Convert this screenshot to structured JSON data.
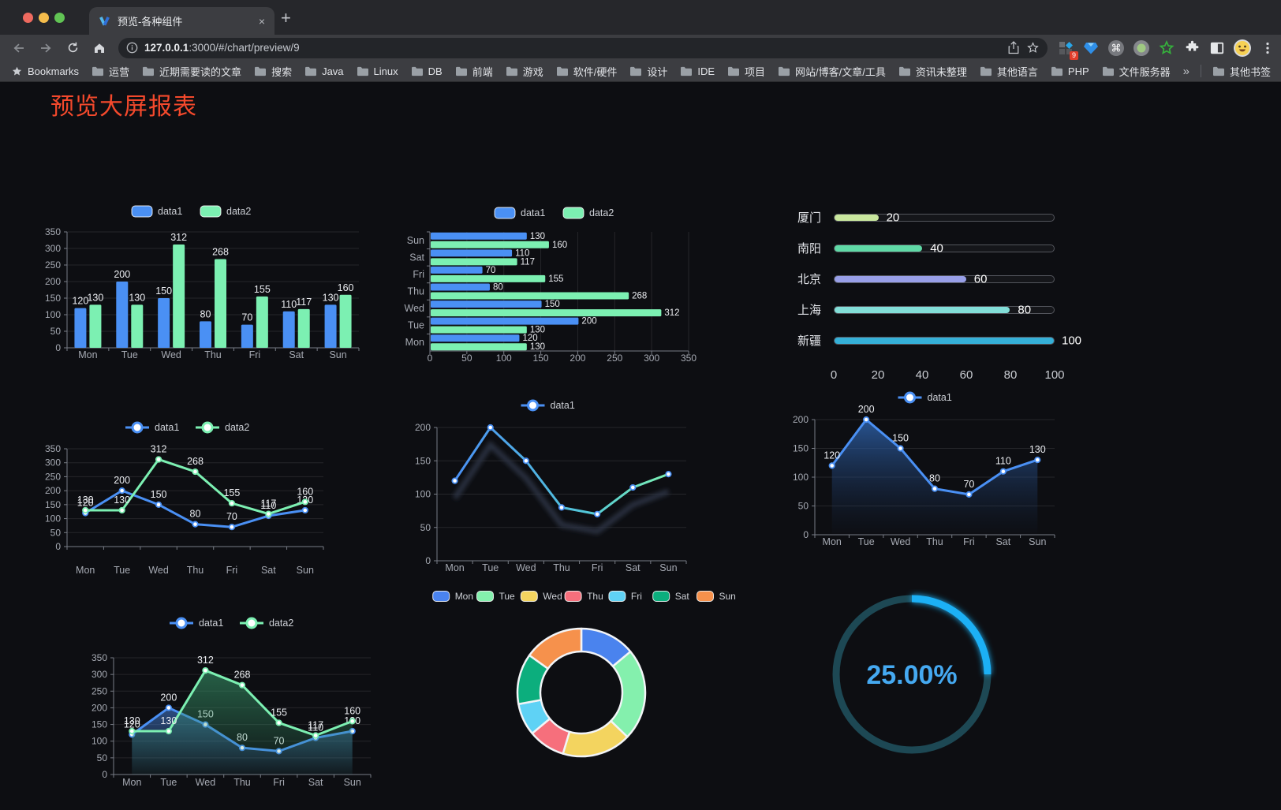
{
  "browser": {
    "tab_title": "预览-各种组件",
    "close_tab": "×",
    "new_tab": "+",
    "url_host": "127.0.0.1",
    "url_rest": ":3000/#/chart/preview/9",
    "bookmarks_label": "Bookmarks",
    "bookmarks": [
      "运营",
      "近期需要读的文章",
      "搜索",
      "Java",
      "Linux",
      "DB",
      "前端",
      "游戏",
      "软件/硬件",
      "设计",
      "IDE",
      "项目",
      "网站/博客/文章/工具",
      "资讯未整理",
      "其他语言",
      "PHP",
      "文件服务器"
    ],
    "overflow_chevron": "»",
    "other_bookmarks": "其他书签",
    "extension_badge": "9"
  },
  "page": {
    "title": "预览大屏报表",
    "title_color": "#f4492c",
    "background": "#0d0e12"
  },
  "chart_data": [
    {
      "id": "bar-vertical",
      "type": "bar",
      "categories": [
        "Mon",
        "Tue",
        "Wed",
        "Thu",
        "Fri",
        "Sat",
        "Sun"
      ],
      "series": [
        {
          "name": "data1",
          "color": "#4a90f4",
          "values": [
            120,
            200,
            150,
            80,
            70,
            110,
            130
          ]
        },
        {
          "name": "data2",
          "color": "#7cf0b2",
          "values": [
            130,
            130,
            312,
            268,
            155,
            117,
            160
          ]
        }
      ],
      "ylim": [
        0,
        350
      ],
      "ytick": 50,
      "show_labels": true,
      "legend_position": "top",
      "grid": true
    },
    {
      "id": "bar-horizontal",
      "type": "bar-horizontal",
      "categories_top_to_bottom": [
        "Sun",
        "Sat",
        "Fri",
        "Thu",
        "Wed",
        "Tue",
        "Mon"
      ],
      "series": [
        {
          "name": "data1",
          "color": "#4a90f4",
          "values": [
            130,
            110,
            70,
            80,
            150,
            200,
            120
          ]
        },
        {
          "name": "data2",
          "color": "#7cf0b2",
          "values": [
            160,
            117,
            155,
            268,
            312,
            130,
            130
          ]
        }
      ],
      "xlim": [
        0,
        350
      ],
      "xtick": 50,
      "show_labels": true,
      "legend_position": "top",
      "grid": true
    },
    {
      "id": "city-progress",
      "type": "progress-bars",
      "max": 100,
      "axis_ticks": [
        0,
        20,
        40,
        60,
        80,
        100
      ],
      "rows": [
        {
          "label": "厦门",
          "value": 20,
          "color": "#c9e79e"
        },
        {
          "label": "南阳",
          "value": 40,
          "color": "#5fd9a6"
        },
        {
          "label": "北京",
          "value": 60,
          "color": "#989fe8"
        },
        {
          "label": "上海",
          "value": 80,
          "color": "#82ded8"
        },
        {
          "label": "新疆",
          "value": 100,
          "color": "#35b0d8"
        }
      ]
    },
    {
      "id": "line-two-series",
      "type": "line",
      "categories": [
        "Mon",
        "Tue",
        "Wed",
        "Thu",
        "Fri",
        "Sat",
        "Sun"
      ],
      "series": [
        {
          "name": "data1",
          "color": "#4a90f4",
          "values": [
            120,
            200,
            150,
            80,
            70,
            110,
            130
          ]
        },
        {
          "name": "data2",
          "color": "#7cf0b2",
          "values": [
            130,
            130,
            312,
            268,
            155,
            117,
            160
          ]
        }
      ],
      "ylim": [
        0,
        350
      ],
      "ytick": 50,
      "show_labels": true,
      "legend_position": "top",
      "grid": true
    },
    {
      "id": "gradient-line",
      "type": "line",
      "categories": [
        "Mon",
        "Tue",
        "Wed",
        "Thu",
        "Fri",
        "Sat",
        "Sun"
      ],
      "series": [
        {
          "name": "data1",
          "color": "#4a90f4",
          "values": [
            120,
            200,
            150,
            80,
            70,
            110,
            130
          ],
          "line_gradient": [
            [
              0,
              "#4a90f4"
            ],
            [
              0.62,
              "#53c8d8"
            ],
            [
              1,
              "#7cf0b2"
            ]
          ],
          "shadow": true
        }
      ],
      "ylim": [
        0,
        200
      ],
      "ytick": 50,
      "show_labels": false,
      "legend_position": "top",
      "grid": true
    },
    {
      "id": "area-line",
      "type": "area",
      "categories": [
        "Mon",
        "Tue",
        "Wed",
        "Thu",
        "Fri",
        "Sat",
        "Sun"
      ],
      "series": [
        {
          "name": "data1",
          "color": "#4a90f4",
          "values": [
            120,
            200,
            150,
            80,
            70,
            110,
            130
          ],
          "area": [
            "rgba(47,102,178,0.80)",
            "rgba(25,45,80,0.03)"
          ]
        }
      ],
      "ylim": [
        0,
        200
      ],
      "ytick": 50,
      "show_labels": true,
      "legend_position": "top",
      "grid": true
    },
    {
      "id": "two-series-area",
      "type": "area",
      "categories": [
        "Mon",
        "Tue",
        "Wed",
        "Thu",
        "Fri",
        "Sat",
        "Sun"
      ],
      "series": [
        {
          "name": "data1",
          "color": "#4a90f4",
          "values": [
            120,
            200,
            150,
            80,
            70,
            110,
            130
          ],
          "area": [
            "rgba(70,130,220,0.55)",
            "rgba(70,130,220,0.04)"
          ]
        },
        {
          "name": "data2",
          "color": "#7cf0b2",
          "values": [
            130,
            130,
            312,
            268,
            155,
            117,
            160
          ],
          "area": [
            "rgba(55,150,105,0.60)",
            "rgba(55,150,105,0.05)"
          ]
        }
      ],
      "ylim": [
        0,
        350
      ],
      "ytick": 50,
      "show_labels": true,
      "legend_position": "top",
      "grid": true
    },
    {
      "id": "donut",
      "type": "pie",
      "categories": [
        "Mon",
        "Tue",
        "Wed",
        "Thu",
        "Fri",
        "Sat",
        "Sun"
      ],
      "values": [
        120,
        200,
        150,
        80,
        70,
        110,
        130
      ],
      "colors": [
        "#4a83ee",
        "#84f0ad",
        "#f3d45f",
        "#f66f7c",
        "#5fd2f5",
        "#0cae7d",
        "#f6914c"
      ],
      "start_angle": 90,
      "clockwise": true,
      "inner_radius_ratio": 0.64,
      "legend_position": "top"
    },
    {
      "id": "gauge",
      "type": "gauge",
      "value": 25,
      "label": "25.00%",
      "color": "#1fb0f5",
      "track_color": "#1d4854",
      "label_color": "#45a9f1"
    }
  ]
}
